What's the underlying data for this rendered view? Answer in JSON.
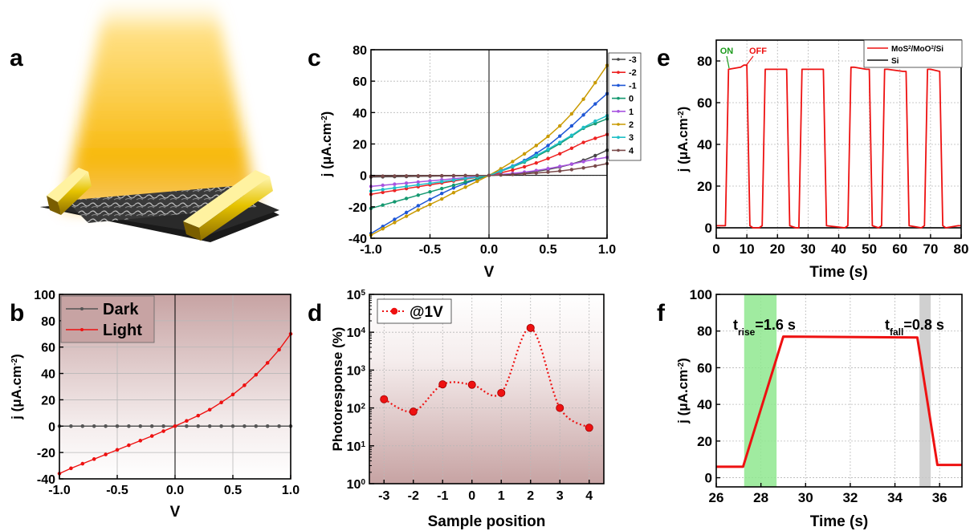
{
  "panels": {
    "a": {
      "letter": "a"
    },
    "b": {
      "letter": "b"
    },
    "c": {
      "letter": "c"
    },
    "d": {
      "letter": "d"
    },
    "e": {
      "letter": "e"
    },
    "f": {
      "letter": "f"
    }
  },
  "colors": {
    "light_beam": "#f5b800",
    "electrode": "#e8c200",
    "panel_b_bg_top": "#c9a6a6",
    "panel_d_bg_bottom": "#c9a6a6",
    "red": "#ee1111",
    "rise_band": "#90ee90",
    "fall_band": "#cfcfcf"
  },
  "chart_data": [
    {
      "id": "b",
      "type": "line",
      "xlabel": "V",
      "ylabel": "j (μA.cm⁻²)",
      "xlim": [
        -1.0,
        1.0
      ],
      "ylim": [
        -40,
        100
      ],
      "xticks": [
        "-1.0",
        "-0.5",
        "0.0",
        "0.5",
        "1.0"
      ],
      "yticks": [
        "-40",
        "-20",
        "0",
        "20",
        "40",
        "60",
        "80",
        "100"
      ],
      "grid": true,
      "legend_position": "top-left",
      "series": [
        {
          "name": "Dark",
          "color": "#555555",
          "x": [
            -1.0,
            -0.9,
            -0.8,
            -0.7,
            -0.6,
            -0.5,
            -0.4,
            -0.3,
            -0.2,
            -0.1,
            0.0,
            0.1,
            0.2,
            0.3,
            0.4,
            0.5,
            0.6,
            0.7,
            0.8,
            0.9,
            1.0
          ],
          "y": [
            0,
            0,
            0,
            0,
            0,
            0,
            0,
            0,
            0,
            0,
            0,
            0,
            0,
            0,
            0,
            0,
            0,
            0,
            0,
            0,
            0
          ]
        },
        {
          "name": "Light",
          "color": "#ee1111",
          "x": [
            -1.0,
            -0.9,
            -0.8,
            -0.7,
            -0.6,
            -0.5,
            -0.4,
            -0.3,
            -0.2,
            -0.1,
            0.0,
            0.1,
            0.2,
            0.3,
            0.4,
            0.5,
            0.6,
            0.7,
            0.8,
            0.9,
            1.0
          ],
          "y": [
            -36,
            -32,
            -28.5,
            -25,
            -21.5,
            -18,
            -14.5,
            -11,
            -7.5,
            -3.8,
            0,
            4,
            8,
            12.5,
            18,
            24,
            31,
            39,
            48,
            58,
            70
          ]
        }
      ]
    },
    {
      "id": "c",
      "type": "line",
      "xlabel": "V",
      "ylabel": "j (μA.cm⁻²)",
      "xlim": [
        -1.0,
        1.0
      ],
      "ylim": [
        -40,
        80
      ],
      "xticks": [
        "-1.0",
        "-0.5",
        "0.0",
        "0.5",
        "1.0"
      ],
      "yticks": [
        "-40",
        "-20",
        "0",
        "20",
        "40",
        "60",
        "80"
      ],
      "grid": true,
      "legend_position": "right",
      "x": [
        -1.0,
        -0.9,
        -0.8,
        -0.7,
        -0.6,
        -0.5,
        -0.4,
        -0.3,
        -0.2,
        -0.1,
        0.0,
        0.1,
        0.2,
        0.3,
        0.4,
        0.5,
        0.6,
        0.7,
        0.8,
        0.9,
        1.0
      ],
      "series": [
        {
          "name": "-3",
          "color": "#444444",
          "y": [
            -1,
            -0.9,
            -0.8,
            -0.7,
            -0.6,
            -0.5,
            -0.4,
            -0.3,
            -0.2,
            -0.1,
            0,
            0.4,
            0.9,
            1.6,
            2.5,
            3.8,
            5.3,
            7.2,
            9.6,
            12.6,
            16
          ]
        },
        {
          "name": "-2",
          "color": "#ee2222",
          "y": [
            -12,
            -10.8,
            -9.6,
            -8.4,
            -7.2,
            -6,
            -4.8,
            -3.6,
            -2.4,
            -1.2,
            0,
            1.6,
            3.4,
            5.5,
            7.9,
            10.7,
            13.8,
            17.3,
            21,
            23.6,
            26
          ]
        },
        {
          "name": "-1",
          "color": "#1f57d6",
          "y": [
            -37,
            -32.5,
            -28,
            -23.6,
            -19.3,
            -15.3,
            -11.5,
            -8,
            -5,
            -2.4,
            0,
            3,
            6,
            9.5,
            14,
            19,
            25,
            31.5,
            38.5,
            45.5,
            52
          ]
        },
        {
          "name": "0",
          "color": "#159970",
          "y": [
            -21,
            -18.9,
            -16.8,
            -14.7,
            -12.6,
            -10.5,
            -8.4,
            -6.3,
            -4.2,
            -2.1,
            0,
            2.6,
            5.4,
            8.5,
            12,
            15.9,
            20.2,
            25,
            30,
            33,
            36
          ]
        },
        {
          "name": "1",
          "color": "#a855e0",
          "y": [
            -7,
            -6.3,
            -5.6,
            -4.9,
            -4.2,
            -3.5,
            -2.8,
            -2.1,
            -1.4,
            -0.7,
            0,
            0.6,
            1.3,
            2.1,
            3.1,
            4.3,
            5.7,
            7.2,
            8.8,
            10.3,
            11.5
          ]
        },
        {
          "name": "2",
          "color": "#c99a00",
          "y": [
            -38,
            -34,
            -30,
            -26,
            -22,
            -18.5,
            -15,
            -11,
            -7.5,
            -3.8,
            0,
            4.2,
            8.8,
            13.7,
            19,
            24.8,
            31.5,
            39.2,
            48.5,
            59,
            70
          ]
        },
        {
          "name": "3",
          "color": "#20c0c8",
          "y": [
            -10,
            -9,
            -8,
            -7,
            -6,
            -5,
            -4,
            -3,
            -2,
            -1,
            0,
            2.7,
            5.7,
            9,
            12.7,
            16.7,
            21,
            25.5,
            30.5,
            34.5,
            38
          ]
        },
        {
          "name": "4",
          "color": "#7a4a4a",
          "y": [
            -0.5,
            -0.45,
            -0.4,
            -0.35,
            -0.3,
            -0.25,
            -0.2,
            -0.15,
            -0.1,
            -0.05,
            0,
            0.3,
            0.6,
            1.0,
            1.5,
            2.1,
            2.8,
            3.7,
            4.8,
            6,
            7.5
          ]
        }
      ]
    },
    {
      "id": "d",
      "type": "line",
      "xlabel": "Sample position",
      "ylabel": "Photoresponse (%)",
      "xlim": [
        -3.5,
        4.5
      ],
      "ylim_log10": [
        0,
        5
      ],
      "yscale": "log",
      "xticks": [
        "-3",
        "-2",
        "-1",
        "0",
        "1",
        "2",
        "3",
        "4"
      ],
      "yticks": [
        "10⁰",
        "10¹",
        "10²",
        "10³",
        "10⁴",
        "10⁵"
      ],
      "grid": true,
      "legend_position": "top-left",
      "series": [
        {
          "name": "@1V",
          "color": "#ee1111",
          "x": [
            -3,
            -2,
            -1,
            0,
            1,
            2,
            3,
            4
          ],
          "y": [
            170,
            80,
            420,
            410,
            250,
            13000,
            100,
            30
          ]
        }
      ]
    },
    {
      "id": "e",
      "type": "line",
      "xlabel": "Time (s)",
      "ylabel": "j (μA.cm⁻²)",
      "xlim": [
        0,
        80
      ],
      "ylim": [
        -5,
        90
      ],
      "xticks": [
        "0",
        "10",
        "20",
        "30",
        "40",
        "50",
        "60",
        "70",
        "80"
      ],
      "yticks": [
        "0",
        "20",
        "40",
        "60",
        "80"
      ],
      "grid": true,
      "legend_position": "top-right",
      "annotations": [
        "ON",
        "OFF"
      ],
      "series": [
        {
          "name": "MoS₂/MoO₂/Si",
          "color": "#ee1111",
          "x": [
            0,
            3,
            4,
            8,
            9,
            10,
            11,
            12,
            14,
            15,
            16,
            17,
            22,
            23,
            24,
            26,
            27,
            28,
            29,
            34,
            35,
            36,
            42,
            43,
            44,
            45,
            49,
            50,
            51,
            53,
            54,
            55,
            56,
            61,
            62,
            63,
            67,
            68,
            69,
            70,
            73,
            74,
            75,
            79,
            80
          ],
          "y": [
            1,
            1,
            76,
            77,
            78,
            78,
            1,
            0,
            0,
            1,
            76,
            76,
            76,
            76,
            1,
            0,
            0,
            76,
            76,
            76,
            76,
            1,
            0,
            1,
            77,
            77,
            76,
            76,
            1,
            0,
            1,
            76,
            76,
            75,
            75,
            1,
            0,
            1,
            76,
            76,
            75,
            1,
            0,
            1,
            1
          ]
        },
        {
          "name": "Si",
          "color": "#111111",
          "x": [
            0,
            80
          ],
          "y": [
            0,
            0
          ]
        }
      ]
    },
    {
      "id": "f",
      "type": "line",
      "xlabel": "Time (s)",
      "ylabel": "j (μA.cm⁻²)",
      "xlim": [
        26,
        37
      ],
      "ylim": [
        -5,
        100
      ],
      "xticks": [
        "26",
        "28",
        "30",
        "32",
        "34",
        "36"
      ],
      "yticks": [
        "0",
        "20",
        "40",
        "60",
        "80",
        "100"
      ],
      "grid": true,
      "annotations": [
        {
          "label": "t",
          "sub": "rise",
          "value": "=1.6 s"
        },
        {
          "label": "t",
          "sub": "fall",
          "value": "=0.8 s"
        }
      ],
      "bands": [
        {
          "name": "rise",
          "from": 27.25,
          "to": 28.7
        },
        {
          "name": "fall",
          "from": 35.1,
          "to": 35.6
        }
      ],
      "series": [
        {
          "name": "j",
          "color": "#ee1111",
          "x": [
            26,
            26.8,
            27.2,
            29.0,
            35.0,
            35.9,
            36.4,
            37
          ],
          "y": [
            6,
            6,
            6,
            77,
            76.5,
            7,
            7,
            7
          ]
        }
      ]
    }
  ]
}
